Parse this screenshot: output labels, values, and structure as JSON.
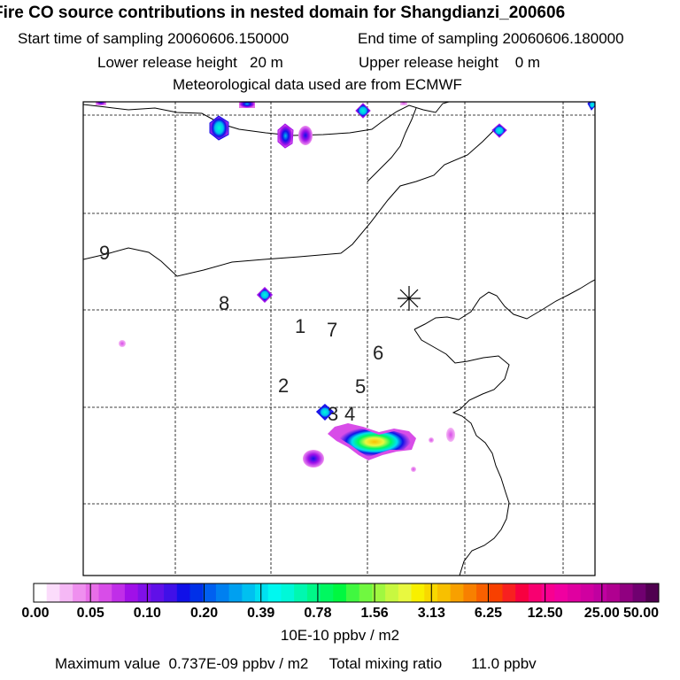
{
  "header": {
    "title": "Fire CO source contributions in nested domain for Shangdianzi_200606",
    "start_label": "Start time of sampling",
    "start_value": "20060606.150000",
    "end_label": "End time of sampling",
    "end_value": "20060606.180000",
    "lower_label": "Lower release height",
    "lower_value": "20 m",
    "upper_label": "Upper release height",
    "upper_value": "0 m",
    "met_line": "Meteorological data used are from ECMWF"
  },
  "chart_data": {
    "type": "heatmap",
    "title": "Fire CO source contributions in nested domain for Shangdianzi_200606",
    "colorbar": {
      "units": "10E-10 ppbv / m2",
      "ticks": [
        "0.00",
        "0.05",
        "0.10",
        "0.20",
        "0.39",
        "0.78",
        "1.56",
        "3.13",
        "6.25",
        "12.50",
        "25.00",
        "50.00"
      ],
      "colors": [
        "#ffffff",
        "#fbdcfb",
        "#f5b8f5",
        "#ef90ef",
        "#e86ee8",
        "#d84de8",
        "#c02ee8",
        "#a010e8",
        "#8010e8",
        "#6010e8",
        "#4010e8",
        "#1010e8",
        "#0030e8",
        "#0060f0",
        "#0080f0",
        "#00a0f0",
        "#00c0f0",
        "#00e0f0",
        "#00f8f0",
        "#00f8d8",
        "#00f8b0",
        "#00f888",
        "#00f860",
        "#00f840",
        "#40f840",
        "#70f840",
        "#a0f840",
        "#c8f840",
        "#e8f840",
        "#f8f000",
        "#f8d800",
        "#f8c000",
        "#f8a000",
        "#f88000",
        "#f86000",
        "#f84000",
        "#f82020",
        "#f80040",
        "#f80070",
        "#f80090",
        "#f000a0",
        "#e000a0",
        "#d000a0",
        "#c000a0",
        "#b00090",
        "#900080",
        "#700070",
        "#500050"
      ]
    },
    "receptor_marker": "asterisk",
    "numbered_labels": [
      "1",
      "2",
      "3",
      "4",
      "5",
      "6",
      "7",
      "8",
      "9"
    ],
    "hotspots": [
      {
        "lon_idx": "n1",
        "intensity_level": "0.05-0.10"
      },
      {
        "lon_idx": "n2",
        "intensity_level": "0.39-0.78"
      },
      {
        "lon_idx": "n3",
        "intensity_level": "0.10-0.20"
      },
      {
        "lon_idx": "n4",
        "intensity_level": "0.39-0.78"
      },
      {
        "lon_idx": "n5",
        "intensity_level": "0.05-0.10"
      },
      {
        "lon_idx": "n6",
        "intensity_level": "0.39-0.78"
      },
      {
        "lon_idx": "n7",
        "intensity_level": "0.39-0.78"
      },
      {
        "lon_idx": "n8",
        "intensity_level": "0.05-0.10"
      },
      {
        "lon_idx": "n9",
        "intensity_level": "0.39-0.78"
      },
      {
        "lon_idx": "s1",
        "intensity_level": "3.13-6.25"
      },
      {
        "lon_idx": "s2",
        "intensity_level": "0.39-0.78"
      },
      {
        "lon_idx": "s3",
        "intensity_level": "0.10-0.20"
      },
      {
        "lon_idx": "s4",
        "intensity_level": "0.05-0.10"
      }
    ]
  },
  "footer": {
    "max_label": "Maximum value",
    "max_value": "0.737E-09 ppbv / m2",
    "total_label": "Total mixing ratio",
    "total_value": "11.0 ppbv"
  }
}
